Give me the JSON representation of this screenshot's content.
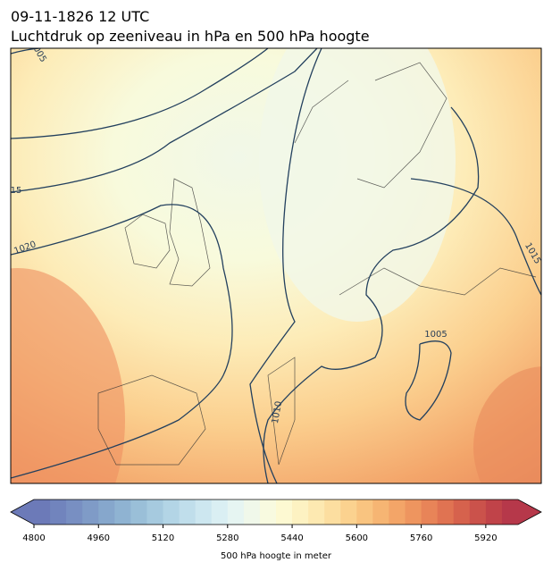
{
  "header": {
    "datetime": "09-11-1826 12 UTC",
    "title": "Luchtdruk op zeeniveau in hPa en 500 hPa hoogte"
  },
  "contour_labels": [
    "005",
    "15",
    "1020",
    "1015",
    "1005",
    "1010"
  ],
  "colorbar": {
    "label": "500 hPa hoogte in meter",
    "range": [
      4800,
      6000
    ],
    "ticks": [
      4800,
      4960,
      5120,
      5280,
      5440,
      5600,
      5760,
      5920
    ],
    "colors": [
      "#6c7ab8",
      "#7184bd",
      "#788fc2",
      "#7f9bc7",
      "#86a7cc",
      "#8fb3d2",
      "#9abfd8",
      "#a6cadf",
      "#b3d5e6",
      "#c0deeb",
      "#cde7f0",
      "#daeff3",
      "#e6f5f2",
      "#f0f8ea",
      "#f8fae0",
      "#fdf9d2",
      "#fdf2c2",
      "#fde9b1",
      "#fcdea0",
      "#fbd28f",
      "#f9c480",
      "#f6b573",
      "#f3a568",
      "#ee955f",
      "#e88458",
      "#e07352",
      "#d6624d",
      "#cb524b",
      "#c04349",
      "#b6384a"
    ]
  }
}
